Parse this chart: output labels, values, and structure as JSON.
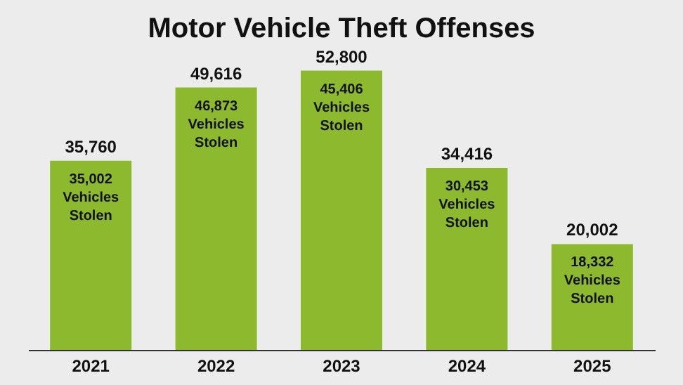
{
  "chart_data": {
    "type": "bar",
    "title": "Motor Vehicle Theft Offenses",
    "categories": [
      "2021",
      "2022",
      "2023",
      "2024",
      "2025"
    ],
    "values": [
      35760,
      49616,
      52800,
      34416,
      20002
    ],
    "value_labels": [
      "35,760",
      "49,616",
      "52,800",
      "34,416",
      "20,002"
    ],
    "color": "#8db92e",
    "grid": false,
    "annotations": [
      "35,002\nVehicles\nStolen",
      "46,873\nVehicles\nStolen",
      "45,406\nVehicles\nStolen",
      "30,453\nVehicles\nStolen",
      "18,332\nVehicles\nStolen"
    ]
  }
}
